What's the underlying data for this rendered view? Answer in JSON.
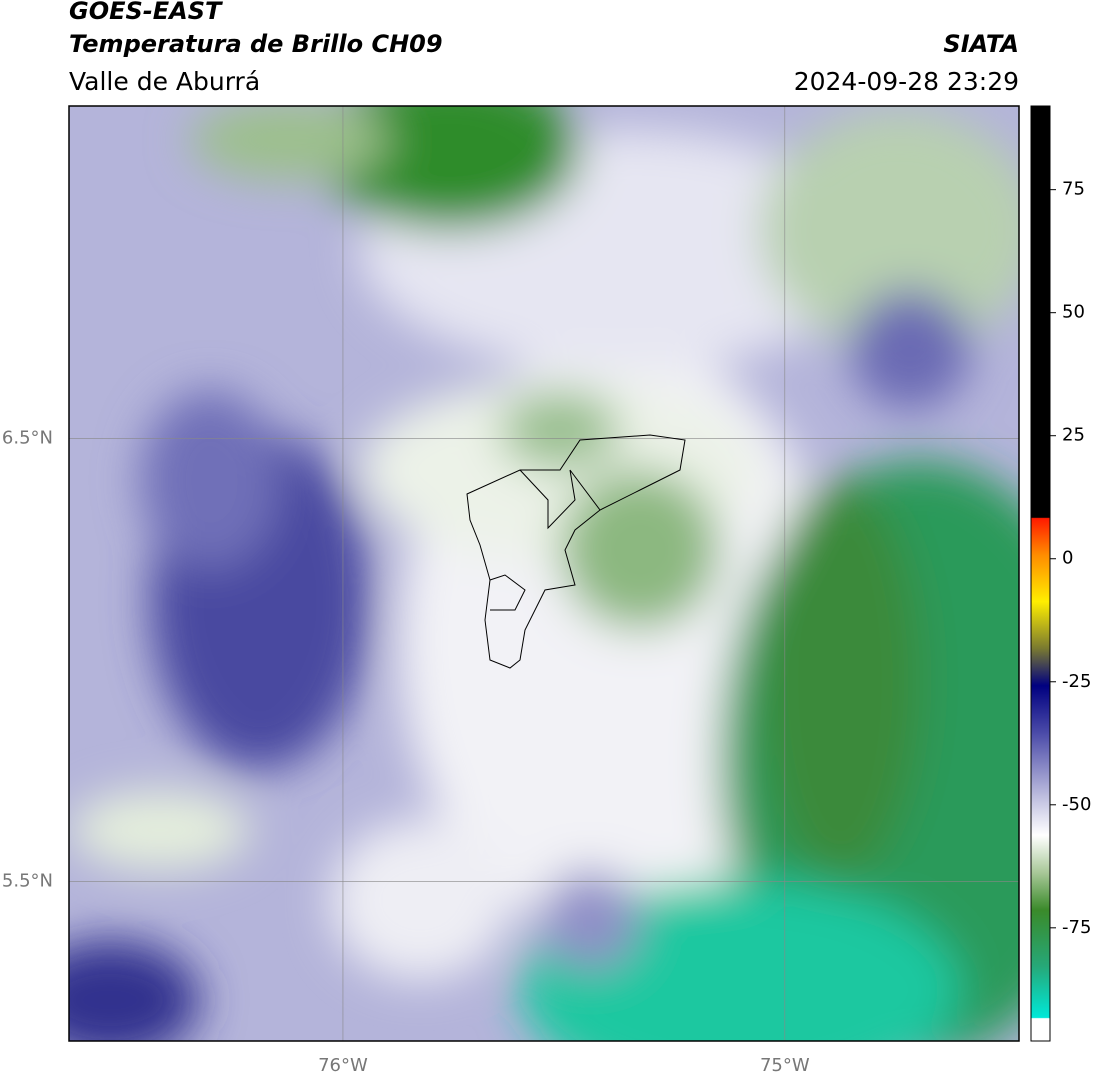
{
  "header": {
    "satellite": "GOES-EAST",
    "title": "Temperatura de Brillo CH09",
    "region": "Valle de Aburrá",
    "source": "SIATA",
    "datetime": "2024-09-28 23:29"
  },
  "map": {
    "lat_lim": [
      5.14,
      7.25
    ],
    "lon_lim": [
      -76.62,
      -74.47
    ],
    "lat_ticks": [
      {
        "value": 6.5,
        "label": "6.5°N"
      },
      {
        "value": 5.5,
        "label": "5.5°N"
      }
    ],
    "lon_ticks": [
      {
        "value": -76,
        "label": "76°W"
      },
      {
        "value": -75,
        "label": "75°W"
      }
    ]
  },
  "colorbar": {
    "lim": [
      -98,
      92
    ],
    "ticks": [
      75,
      50,
      25,
      0,
      -25,
      -50,
      -75
    ]
  }
}
